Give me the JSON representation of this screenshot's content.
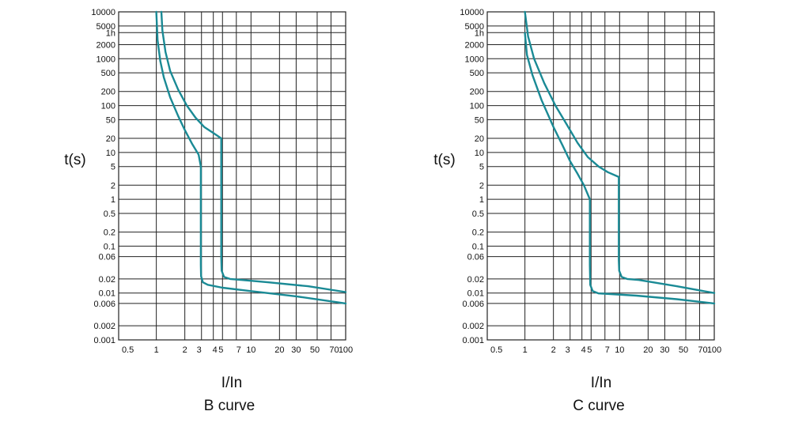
{
  "chart_data": [
    {
      "type": "line",
      "title": "B curve",
      "xlabel": "I/In",
      "ylabel": "t(s)",
      "x_scale": "log",
      "y_scale": "log",
      "xlim": [
        0.4,
        100
      ],
      "ylim": [
        0.001,
        10000
      ],
      "grid": true,
      "x_tick_labels": [
        "0.5",
        "1",
        "2",
        "3",
        "4",
        "5",
        "7",
        "10",
        "20",
        "30",
        "50",
        "70",
        "100"
      ],
      "y_tick_labels": [
        "10000",
        "5000",
        "1h",
        "2000",
        "1000",
        "500",
        "200",
        "100",
        "50",
        "20",
        "10",
        "5",
        "2",
        "1",
        "0.5",
        "0.2",
        "0.1",
        "0.06",
        "0.02",
        "0.01",
        "0.006",
        "0.002",
        "0.001"
      ],
      "series": [
        {
          "x": [
            1.0,
            1.03,
            1.1,
            1.2,
            1.4,
            1.7,
            2.0,
            2.4,
            2.8,
            2.95,
            2.95,
            2.97,
            3.1,
            3.5,
            5,
            10,
            30,
            100
          ],
          "y": [
            10000,
            2500,
            900,
            400,
            150,
            60,
            30,
            15,
            9,
            5.0,
            0.04,
            0.023,
            0.017,
            0.015,
            0.013,
            0.011,
            0.0085,
            0.006
          ]
        },
        {
          "x": [
            1.13,
            1.16,
            1.25,
            1.4,
            1.7,
            2.1,
            2.6,
            3.2,
            4,
            4.85,
            4.85,
            4.9,
            5.2,
            6,
            8,
            15,
            40,
            100
          ],
          "y": [
            10000,
            4000,
            1400,
            550,
            220,
            100,
            55,
            35,
            26,
            20,
            0.06,
            0.03,
            0.022,
            0.02,
            0.019,
            0.017,
            0.014,
            0.0105
          ]
        }
      ]
    },
    {
      "type": "line",
      "title": "C curve",
      "xlabel": "I/In",
      "ylabel": "t(s)",
      "x_scale": "log",
      "y_scale": "log",
      "xlim": [
        0.4,
        100
      ],
      "ylim": [
        0.001,
        10000
      ],
      "grid": true,
      "x_tick_labels": [
        "0.5",
        "1",
        "2",
        "3",
        "4",
        "5",
        "7",
        "10",
        "20",
        "30",
        "50",
        "70",
        "100"
      ],
      "y_tick_labels": [
        "10000",
        "5000",
        "1h",
        "2000",
        "1000",
        "500",
        "200",
        "100",
        "50",
        "20",
        "10",
        "5",
        "2",
        "1",
        "0.5",
        "0.2",
        "0.1",
        "0.06",
        "0.02",
        "0.01",
        "0.006",
        "0.002",
        "0.001"
      ],
      "series": [
        {
          "x": [
            1.0,
            1.05,
            1.2,
            1.5,
            2.0,
            2.5,
            3.0,
            3.6,
            4.2,
            4.85,
            4.85,
            4.9,
            5.2,
            6,
            8,
            15,
            40,
            100
          ],
          "y": [
            3500,
            1200,
            450,
            130,
            35,
            14,
            6.5,
            3.5,
            2.0,
            1.0,
            0.04,
            0.015,
            0.011,
            0.0098,
            0.0095,
            0.0088,
            0.0074,
            0.006
          ]
        },
        {
          "x": [
            1.0,
            1.08,
            1.25,
            1.6,
            2.1,
            2.8,
            3.6,
            4.6,
            6,
            7.5,
            9.8,
            9.8,
            9.9,
            10.5,
            12,
            16,
            40,
            100
          ],
          "y": [
            10000,
            3000,
            1000,
            300,
            100,
            38,
            16,
            8,
            5,
            3.8,
            3.0,
            0.05,
            0.03,
            0.022,
            0.02,
            0.019,
            0.014,
            0.01
          ]
        }
      ]
    }
  ]
}
